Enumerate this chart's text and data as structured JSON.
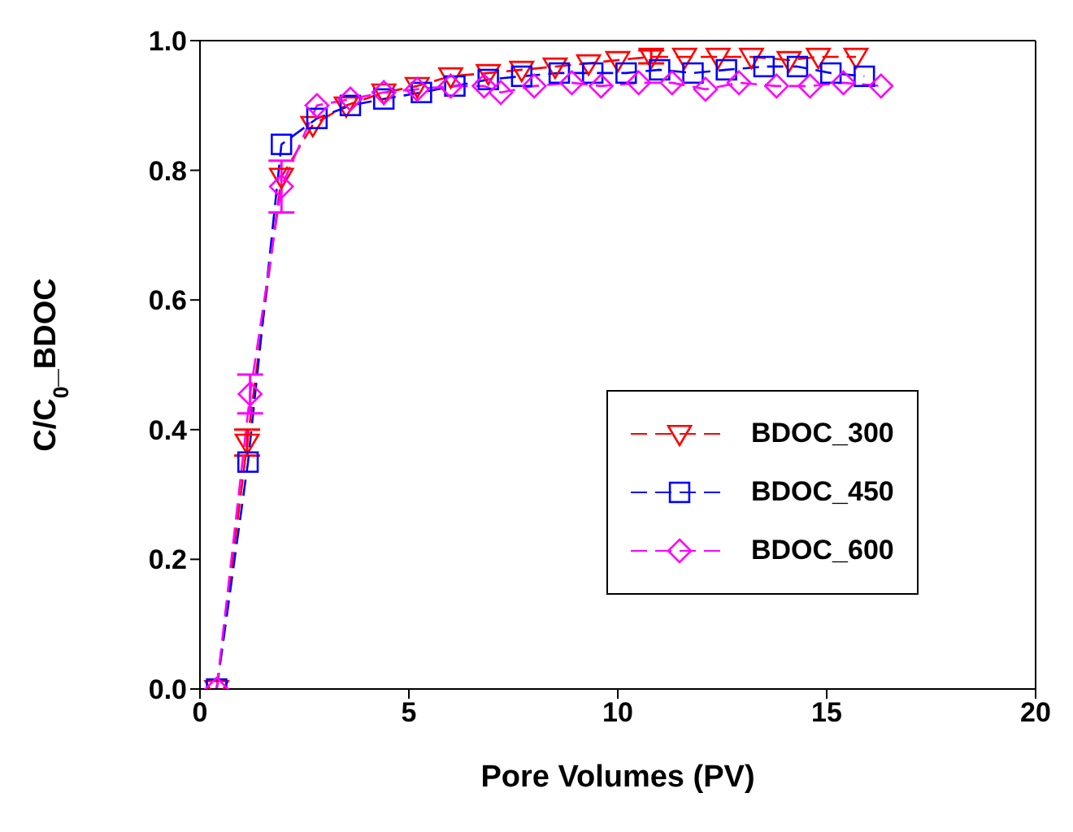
{
  "chart_data": {
    "type": "line",
    "xlabel": "Pore Volumes (PV)",
    "ylabel": "C/C$_{0}$_BDOC",
    "xlim": [
      0,
      20
    ],
    "xticks": [
      0,
      5,
      10,
      15,
      20
    ],
    "ylim": [
      0,
      1
    ],
    "yticks": [
      {
        "value": 0,
        "label": "0.0"
      },
      {
        "value": 0.2,
        "label": "0.2"
      },
      {
        "value": 0.4,
        "label": "0.4"
      },
      {
        "value": 0.6,
        "label": "0.6"
      },
      {
        "value": 0.8,
        "label": "0.8"
      },
      {
        "value": 1,
        "label": "1.0"
      }
    ],
    "grid": false,
    "legend": "bottom right",
    "line_style": "dashed",
    "series": [
      {
        "name": "BDOC_300",
        "color": "#ff0000",
        "marker": "triangle",
        "x": [
          0.4,
          1.13,
          1.95,
          2.7,
          3.5,
          4.4,
          5.2,
          6.0,
          6.9,
          7.7,
          8.5,
          9.3,
          10.0,
          10.8,
          11.6,
          12.4,
          13.2,
          14.1,
          14.8,
          15.7
        ],
        "values": [
          0,
          0.38,
          0.79,
          0.87,
          0.9,
          0.92,
          0.93,
          0.945,
          0.95,
          0.955,
          0.96,
          0.965,
          0.97,
          0.975,
          0.975,
          0.975,
          0.975,
          0.97,
          0.975,
          0.975
        ],
        "errors": [
          null,
          0.02,
          null,
          null,
          null,
          null,
          null,
          null,
          null,
          null,
          null,
          null,
          null,
          0.01,
          null,
          null,
          null,
          null,
          null,
          null
        ]
      },
      {
        "name": "BDOC_450",
        "color": "#0000ff",
        "marker": "square",
        "x": [
          0.4,
          1.15,
          1.95,
          2.8,
          3.6,
          4.4,
          5.3,
          6.1,
          6.9,
          7.7,
          8.6,
          9.4,
          10.2,
          11.0,
          11.8,
          12.6,
          13.5,
          14.3,
          15.1,
          15.9
        ],
        "values": [
          0,
          0.35,
          0.84,
          0.88,
          0.9,
          0.91,
          0.92,
          0.93,
          0.94,
          0.945,
          0.95,
          0.95,
          0.95,
          0.955,
          0.95,
          0.955,
          0.96,
          0.96,
          0.95,
          0.945
        ]
      },
      {
        "name": "BDOC_600",
        "color": "#ff00ff",
        "marker": "diamond",
        "x": [
          0.4,
          1.2,
          1.95,
          2.8,
          3.6,
          4.4,
          5.2,
          6.0,
          6.8,
          7.2,
          8.0,
          8.9,
          9.6,
          10.5,
          11.3,
          12.1,
          12.9,
          13.8,
          14.6,
          15.4,
          16.3
        ],
        "values": [
          0,
          0.455,
          0.775,
          0.9,
          0.91,
          0.92,
          0.925,
          0.93,
          0.93,
          0.92,
          0.93,
          0.935,
          0.93,
          0.935,
          0.935,
          0.925,
          0.935,
          0.93,
          0.93,
          0.935,
          0.93
        ],
        "errors": [
          null,
          0.03,
          0.04,
          null,
          null,
          null,
          null,
          null,
          null,
          null,
          null,
          null,
          null,
          null,
          null,
          null,
          null,
          null,
          null,
          null,
          null
        ]
      }
    ]
  }
}
